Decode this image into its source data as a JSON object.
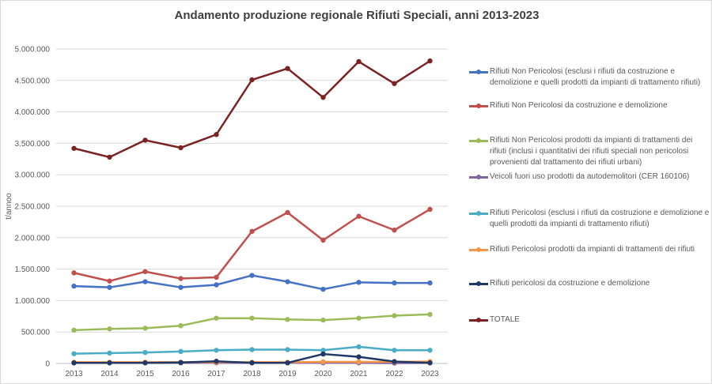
{
  "chart_data": {
    "type": "line",
    "title": "Andamento produzione regionale Rifiuti Speciali, anni 2013-2023",
    "xlabel": "",
    "ylabel": "t/annoo",
    "ylim": [
      0,
      5000000
    ],
    "yticks": [
      "0",
      "500.000",
      "1.000.000",
      "1.500.000",
      "2.000.000",
      "2.500.000",
      "3.000.000",
      "3.500.000",
      "4.000.000",
      "4.500.000",
      "5.000.000"
    ],
    "grid": true,
    "legend_position": "right",
    "categories": [
      "2013",
      "2014",
      "2015",
      "2016",
      "2017",
      "2018",
      "2019",
      "2020",
      "2021",
      "2022",
      "2023"
    ],
    "series": [
      {
        "name": "Rifiuti Non Pericolosi (esclusi i rifiuti da costruzione e demolizione e quelli prodotti da impianti di trattamento rifiuti)",
        "color": "#4472c4",
        "values": [
          1230000,
          1210000,
          1300000,
          1210000,
          1250000,
          1400000,
          1300000,
          1180000,
          1290000,
          1280000,
          1280000
        ]
      },
      {
        "name": "Rifiuti Non Pericolosi da costruzione e demolizione",
        "color": "#c0504d",
        "values": [
          1440000,
          1310000,
          1460000,
          1350000,
          1370000,
          2100000,
          2400000,
          1960000,
          2340000,
          2120000,
          2450000
        ]
      },
      {
        "name": "Rifiuti Non Pericolosi prodotti da impianti di trattamenti dei rifiuti (inclusi i quantitativi dei rifiuti speciali non pericolosi provenienti dal trattamento dei rifiuti urbani)",
        "color": "#9bbb59",
        "values": [
          530000,
          550000,
          560000,
          600000,
          720000,
          720000,
          700000,
          690000,
          720000,
          760000,
          780000
        ]
      },
      {
        "name": "Veicoli fuori uso prodotti da autodemolitori (CER 160106)",
        "color": "#8064a2",
        "values": [
          10000,
          10000,
          10000,
          10000,
          10000,
          10000,
          10000,
          10000,
          10000,
          5000,
          10000
        ]
      },
      {
        "name": "Rifiuti Pericolosi (esclusi i rifiuti da costruzione e demolizione e quelli prodotti da impianti di trattamento rifiuti)",
        "color": "#4bacc6",
        "values": [
          155000,
          165000,
          175000,
          190000,
          210000,
          220000,
          220000,
          210000,
          265000,
          210000,
          210000
        ]
      },
      {
        "name": "Rifiuti Pericolosi prodotti da impianti di trattamenti dei rifiuti",
        "color": "#f79646",
        "values": [
          20000,
          20000,
          20000,
          20000,
          20000,
          20000,
          20000,
          25000,
          25000,
          25000,
          30000
        ]
      },
      {
        "name": "Rifiuti pericolosi da costruzione e demolizione",
        "color": "#1f3864",
        "values": [
          10000,
          10000,
          10000,
          15000,
          35000,
          10000,
          10000,
          150000,
          105000,
          30000,
          10000
        ]
      },
      {
        "name": "TOTALE",
        "color": "#7b2323",
        "values": [
          3420000,
          3280000,
          3550000,
          3430000,
          3640000,
          4510000,
          4690000,
          4230000,
          4800000,
          4450000,
          4810000
        ]
      }
    ]
  }
}
